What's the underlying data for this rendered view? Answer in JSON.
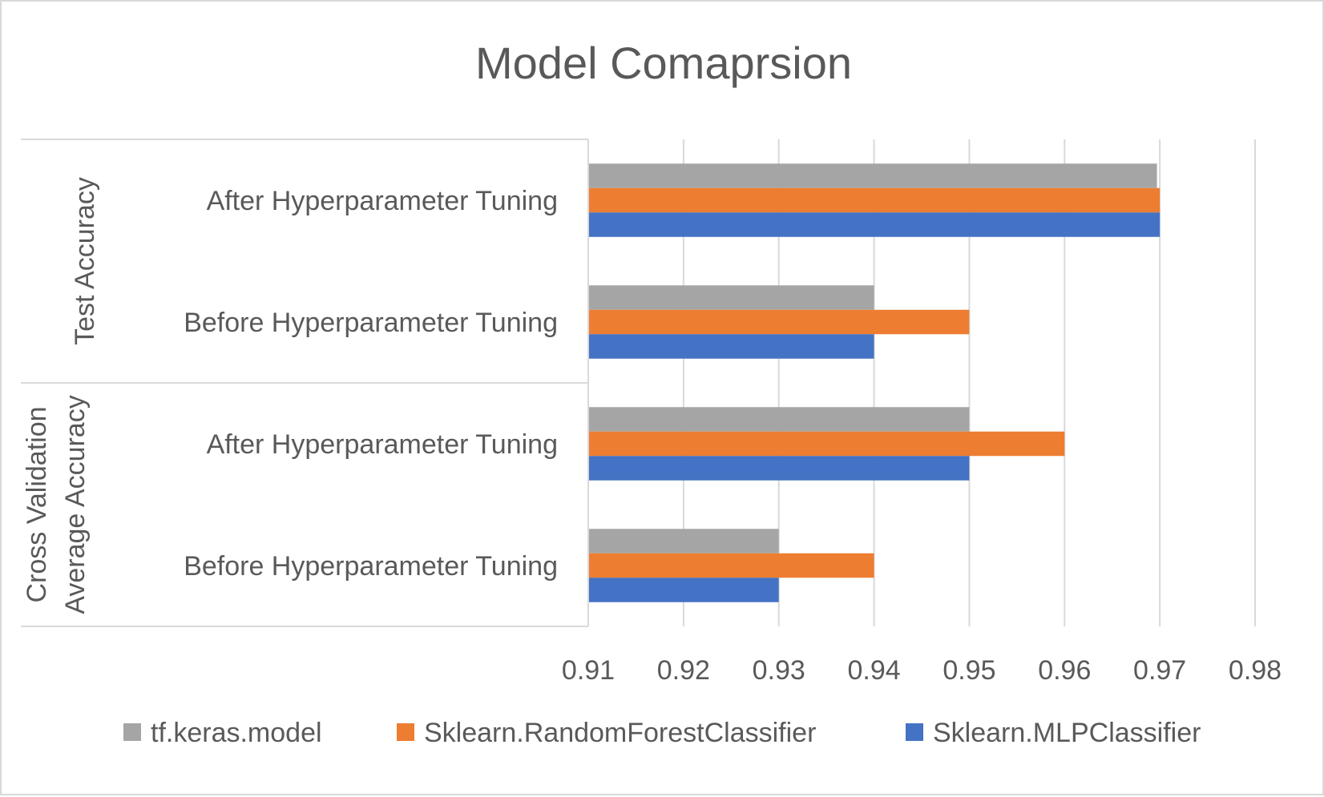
{
  "chart_data": {
    "type": "bar",
    "orientation": "horizontal",
    "title": "Model Comaprsion",
    "groups": [
      {
        "label_lines": [
          "Test Accuracy"
        ],
        "categories": [
          "After Hyperparameter Tuning",
          "Before Hyperparameter Tuning"
        ]
      },
      {
        "label_lines": [
          "Cross Validation",
          "Average Accuracy"
        ],
        "categories": [
          "After Hyperparameter Tuning",
          "Before Hyperparameter Tuning"
        ]
      }
    ],
    "series": [
      {
        "name": "tf.keras.model",
        "color": "#a5a5a5",
        "values": [
          0.9697,
          0.94,
          0.95,
          0.93
        ]
      },
      {
        "name": "Sklearn.RandomForestClassifier",
        "color": "#ed7d31",
        "values": [
          0.97,
          0.95,
          0.96,
          0.94
        ]
      },
      {
        "name": "Sklearn.MLPClassifier",
        "color": "#4472c4",
        "values": [
          0.97,
          0.94,
          0.95,
          0.93
        ]
      }
    ],
    "xlim": [
      0.91,
      0.98
    ],
    "xticks": [
      "0.91",
      "0.92",
      "0.93",
      "0.94",
      "0.95",
      "0.96",
      "0.97",
      "0.98"
    ],
    "grid": true,
    "legend_position": "bottom"
  }
}
